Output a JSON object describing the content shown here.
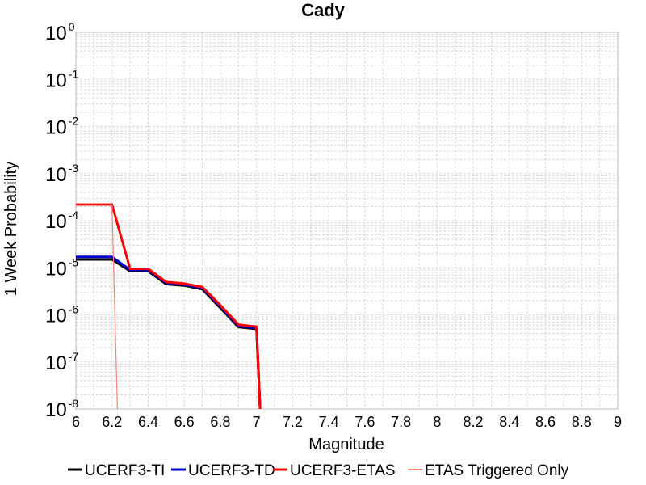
{
  "chart_data": {
    "type": "line",
    "title": "Cady",
    "xlabel": "Magnitude",
    "ylabel": "1 Week Probability",
    "xlim": [
      6,
      9
    ],
    "ylim": [
      1e-08,
      1
    ],
    "yscale": "log",
    "grid": true,
    "legend_position": "bottom",
    "x_ticks": [
      "6",
      "6.2",
      "6.4",
      "6.6",
      "6.8",
      "7",
      "7.2",
      "7.4",
      "7.6",
      "7.8",
      "8",
      "8.2",
      "8.4",
      "8.6",
      "8.8",
      "9"
    ],
    "y_ticks": [
      {
        "base": "10",
        "exp": "0"
      },
      {
        "base": "10",
        "exp": "-1"
      },
      {
        "base": "10",
        "exp": "-2"
      },
      {
        "base": "10",
        "exp": "-3"
      },
      {
        "base": "10",
        "exp": "-4"
      },
      {
        "base": "10",
        "exp": "-5"
      },
      {
        "base": "10",
        "exp": "-6"
      },
      {
        "base": "10",
        "exp": "-7"
      },
      {
        "base": "10",
        "exp": "-8"
      }
    ],
    "series": [
      {
        "name": "UCERF3-TI",
        "color": "#000000",
        "width": 3,
        "x": [
          6.0,
          6.2,
          6.3,
          6.4,
          6.5,
          6.6,
          6.7,
          6.8,
          6.9,
          7.0,
          7.02
        ],
        "y": [
          1.5e-05,
          1.5e-05,
          8.5e-06,
          8.5e-06,
          4.5e-06,
          4.2e-06,
          3.5e-06,
          1.4e-06,
          5.5e-07,
          5e-07,
          1e-08
        ]
      },
      {
        "name": "UCERF3-TD",
        "color": "#0000cc",
        "width": 3,
        "x": [
          6.0,
          6.2,
          6.3,
          6.4,
          6.5,
          6.6,
          6.7,
          6.8,
          6.9,
          7.0,
          7.02
        ],
        "y": [
          1.7e-05,
          1.7e-05,
          9e-06,
          9e-06,
          4.8e-06,
          4.4e-06,
          3.7e-06,
          1.5e-06,
          5.8e-07,
          5.3e-07,
          1e-08
        ]
      },
      {
        "name": "UCERF3-ETAS",
        "color": "#ff0000",
        "width": 3,
        "x": [
          6.0,
          6.2,
          6.3,
          6.4,
          6.5,
          6.6,
          6.7,
          6.8,
          6.9,
          7.0,
          7.02
        ],
        "y": [
          0.00022,
          0.00022,
          9.5e-06,
          9.5e-06,
          5e-06,
          4.6e-06,
          3.9e-06,
          1.6e-06,
          6.2e-07,
          5.6e-07,
          1e-08
        ]
      },
      {
        "name": "ETAS Triggered Only",
        "color": "#ff7f7f",
        "width": 1.2,
        "x": [
          6.0,
          6.2,
          6.23
        ],
        "y": [
          0.00021,
          0.00021,
          1e-08
        ]
      }
    ]
  }
}
